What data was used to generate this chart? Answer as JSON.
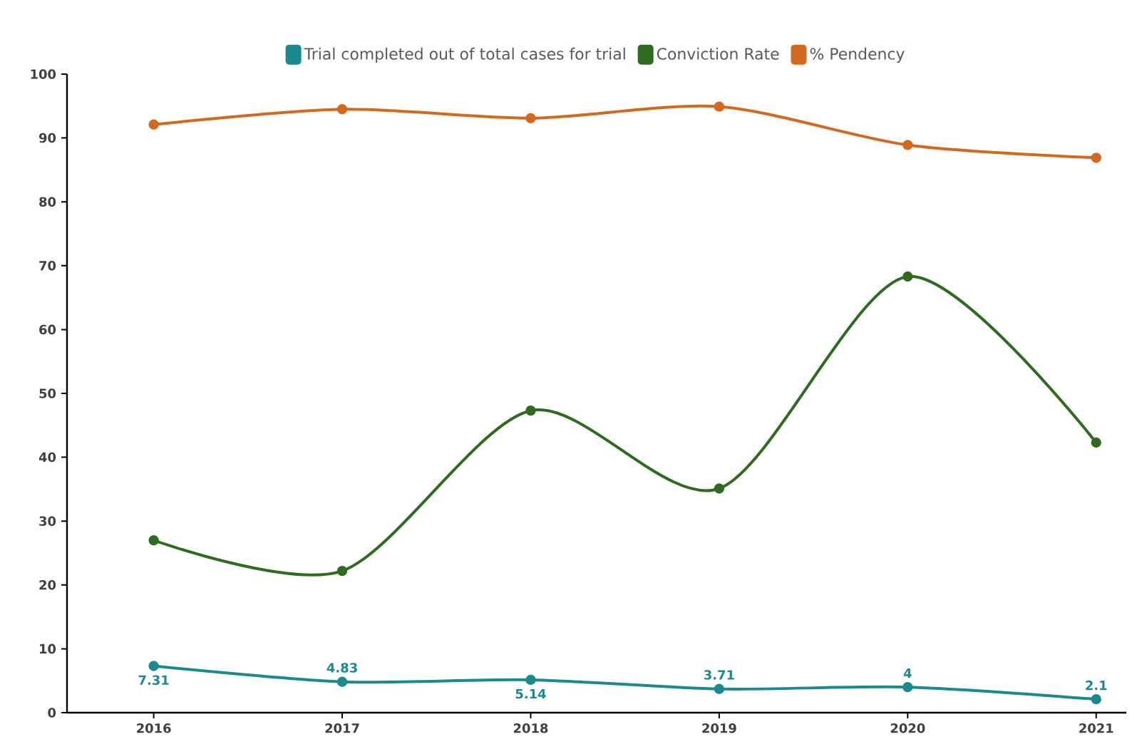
{
  "chart_data": {
    "type": "line",
    "categories": [
      "2016",
      "2017",
      "2018",
      "2019",
      "2020",
      "2021"
    ],
    "series": [
      {
        "name": "Trial completed out of total cases for trial",
        "color": "#1a8a8f",
        "values": [
          7.31,
          4.83,
          5.14,
          3.71,
          4,
          2.1
        ],
        "value_labels": [
          "7.31",
          "4.83",
          "5.14",
          "3.71",
          "4",
          "2.1"
        ]
      },
      {
        "name": "Conviction Rate",
        "color": "#2e6b1f",
        "values": [
          27,
          22.2,
          47.3,
          35.1,
          68.3,
          42.3
        ]
      },
      {
        "name": "% Pendency",
        "color": "#d2691e",
        "values": [
          92.1,
          94.5,
          93.1,
          94.9,
          88.9,
          86.9
        ]
      }
    ],
    "ylim": [
      0,
      100
    ],
    "yticks": [
      0,
      10,
      20,
      30,
      40,
      50,
      60,
      70,
      80,
      90,
      100
    ],
    "grid": false,
    "legend": "top",
    "marker": "circle",
    "line_style": "solid"
  }
}
